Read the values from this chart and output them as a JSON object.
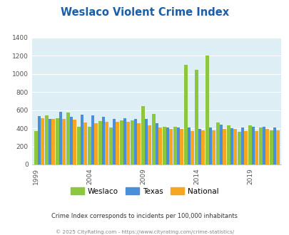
{
  "title": "Weslaco Violent Crime Index",
  "subtitle": "Crime Index corresponds to incidents per 100,000 inhabitants",
  "footer": "© 2025 CityRating.com - https://www.cityrating.com/crime-statistics/",
  "years": [
    1999,
    2000,
    2001,
    2002,
    2003,
    2004,
    2005,
    2006,
    2007,
    2008,
    2009,
    2010,
    2011,
    2012,
    2013,
    2014,
    2015,
    2016,
    2017,
    2018,
    2019,
    2020,
    2021
  ],
  "weslaco": [
    370,
    540,
    510,
    575,
    420,
    420,
    480,
    410,
    490,
    490,
    645,
    555,
    420,
    420,
    1100,
    1045,
    1205,
    465,
    435,
    365,
    435,
    410,
    380
  ],
  "texas": [
    535,
    505,
    580,
    525,
    550,
    540,
    530,
    505,
    510,
    500,
    505,
    455,
    410,
    405,
    405,
    395,
    405,
    440,
    400,
    410,
    415,
    415,
    410
  ],
  "national": [
    510,
    505,
    500,
    495,
    465,
    455,
    470,
    475,
    470,
    455,
    430,
    405,
    390,
    395,
    370,
    375,
    380,
    395,
    395,
    370,
    370,
    395,
    380
  ],
  "weslaco_color": "#8dc63f",
  "texas_color": "#4a90d9",
  "national_color": "#f5a623",
  "bg_color": "#ddeef4",
  "title_color": "#1a5fa8",
  "ylim": [
    0,
    1400
  ],
  "yticks": [
    0,
    200,
    400,
    600,
    800,
    1000,
    1200,
    1400
  ],
  "legend_labels": [
    "Weslaco",
    "Texas",
    "National"
  ],
  "subtitle_color": "#333333",
  "footer_color": "#888888",
  "shown_years": [
    1999,
    2004,
    2009,
    2014,
    2019
  ]
}
